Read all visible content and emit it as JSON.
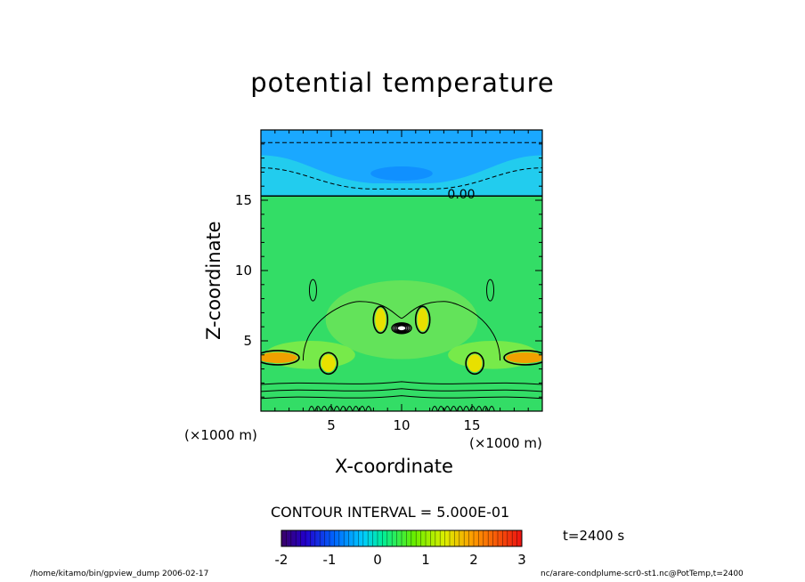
{
  "chart_data": {
    "type": "heatmap",
    "title": "potential temperature",
    "xlabel": "X-coordinate",
    "ylabel": "Z-coordinate",
    "x_unit": "(×1000 m)",
    "xlim": [
      0,
      20
    ],
    "ylim": [
      0,
      20
    ],
    "x_ticks": [
      5,
      10,
      15
    ],
    "y_ticks": [
      5,
      10,
      15
    ],
    "contour_interval_label": "CONTOUR INTERVAL = 5.000E-01",
    "contour_interval": 0.5,
    "zero_contour_label": "0.00",
    "zero_contour_height": 15.3,
    "colorbar": {
      "min": -2,
      "max": 3,
      "ticks": [
        "-2",
        "-1",
        "0",
        "1",
        "2",
        "3"
      ]
    },
    "time_label": "t=2400 s"
  },
  "footer": {
    "left": "/home/kitamo/bin/gpview_dump  2006-02-17",
    "right": "nc/arare-condplume-scr0-st1.nc@PotTemp,t=2400"
  },
  "colors": {
    "background": "#ffffff",
    "field_neutral": "#33dd66",
    "field_cold": "#22ccee",
    "field_colder": "#1aa8ff",
    "field_warm": "#e8e000"
  }
}
